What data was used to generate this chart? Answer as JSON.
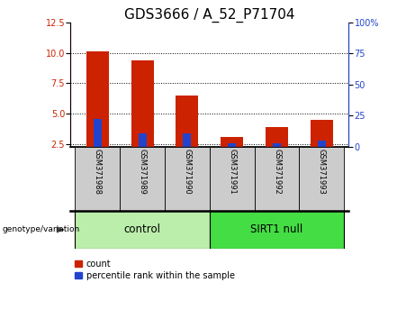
{
  "title": "GDS3666 / A_52_P71704",
  "samples": [
    "GSM371988",
    "GSM371989",
    "GSM371990",
    "GSM371991",
    "GSM371992",
    "GSM371993"
  ],
  "count_values": [
    10.1,
    9.4,
    6.5,
    3.1,
    3.9,
    4.5
  ],
  "percentile_values": [
    4.6,
    3.4,
    3.4,
    2.6,
    2.6,
    2.8
  ],
  "count_bottom": [
    2.3,
    2.3,
    2.3,
    2.3,
    2.3,
    2.3
  ],
  "percentile_bottom": [
    2.3,
    2.3,
    2.3,
    2.3,
    2.3,
    2.3
  ],
  "ylim_left": [
    2.3,
    12.5
  ],
  "ylim_right": [
    0,
    100
  ],
  "yticks_left": [
    2.5,
    5.0,
    7.5,
    10.0,
    12.5
  ],
  "yticks_right": [
    0,
    25,
    50,
    75,
    100
  ],
  "ytick_labels_right": [
    "0",
    "25",
    "50",
    "75",
    "100%"
  ],
  "count_color": "#cc2200",
  "percentile_color": "#2244cc",
  "ctrl_color": "#bbeeaa",
  "sirt_color": "#44dd44",
  "sample_bg_color": "#cccccc",
  "legend_count_label": "count",
  "legend_pct_label": "percentile rank within the sample",
  "genotype_label": "genotype/variation",
  "title_fontsize": 11,
  "tick_fontsize": 7,
  "sample_fontsize": 6,
  "group_label_fontsize": 8.5,
  "legend_fontsize": 7,
  "background_color": "#ffffff"
}
